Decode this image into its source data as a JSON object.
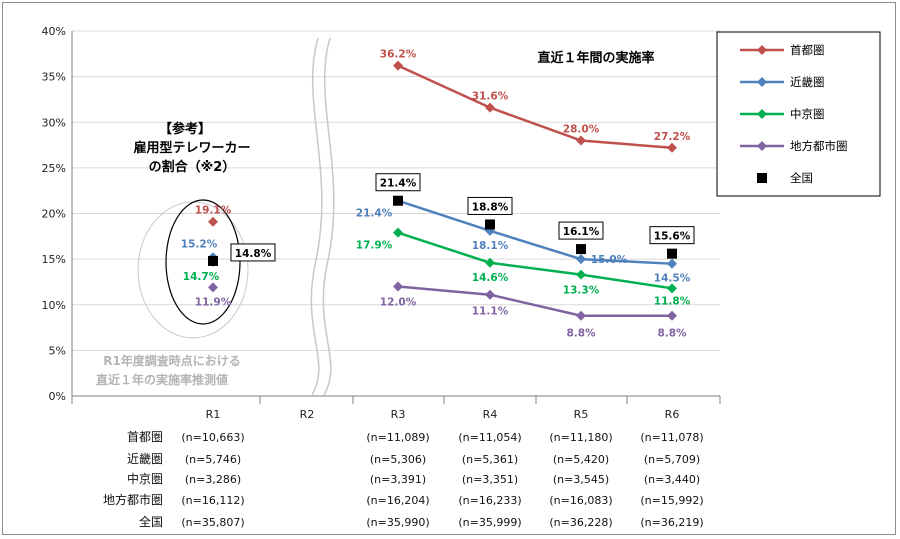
{
  "chart_data": {
    "type": "line",
    "title": "直近１年間の実施率",
    "ylim": [
      0,
      40
    ],
    "yticks": [
      "0%",
      "5%",
      "10%",
      "15%",
      "20%",
      "25%",
      "30%",
      "35%",
      "40%"
    ],
    "categories": [
      "R1",
      "R2",
      "R3",
      "R4",
      "R5",
      "R6"
    ],
    "series": [
      {
        "name": "首都圏",
        "color": "#c0504d",
        "marker": "diamond",
        "values": [
          19.1,
          null,
          36.2,
          31.6,
          28.0,
          27.2
        ],
        "labels": [
          "19.1%",
          "",
          "36.2%",
          "31.6%",
          "28.0%",
          "27.2%"
        ]
      },
      {
        "name": "近畿圏",
        "color": "#4f81bd",
        "marker": "diamond",
        "values": [
          15.2,
          null,
          21.4,
          18.1,
          15.0,
          14.5
        ],
        "labels": [
          "15.2%",
          "",
          "21.4%",
          "18.1%",
          "15.0%",
          "14.5%"
        ]
      },
      {
        "name": "中京圏",
        "color": "#00b050",
        "marker": "diamond",
        "values": [
          14.7,
          null,
          17.9,
          14.6,
          13.3,
          11.8
        ],
        "labels": [
          "14.7%",
          "",
          "17.9%",
          "14.6%",
          "13.3%",
          "11.8%"
        ]
      },
      {
        "name": "地方都市圏",
        "color": "#8064a2",
        "marker": "diamond",
        "values": [
          11.9,
          null,
          12.0,
          11.1,
          8.8,
          8.8
        ],
        "labels": [
          "11.9%",
          "",
          "12.0%",
          "11.1%",
          "8.8%",
          "8.8%"
        ]
      },
      {
        "name": "全国",
        "color": "#000000",
        "marker": "square",
        "values": [
          14.8,
          null,
          21.4,
          18.8,
          16.1,
          15.6
        ],
        "labels": [
          "14.8%",
          "",
          "21.4%",
          "18.8%",
          "16.1%",
          "15.6%"
        ]
      }
    ],
    "reference_note": {
      "line1": "【参考】",
      "line2": "雇用型テレワーカー",
      "line3": "の割合（※2）"
    },
    "r1_note": {
      "line1": "R1年度調査時点における",
      "line2": "直近１年の実施率推測値"
    },
    "sample_table": {
      "rows": [
        {
          "name": "首都圏",
          "n": [
            "(n=10,663)",
            "",
            "(n=11,089)",
            "(n=11,054)",
            "(n=11,180)",
            "(n=11,078)"
          ]
        },
        {
          "name": "近畿圏",
          "n": [
            "(n=5,746)",
            "",
            "(n=5,306)",
            "(n=5,361)",
            "(n=5,420)",
            "(n=5,709)"
          ]
        },
        {
          "name": "中京圏",
          "n": [
            "(n=3,286)",
            "",
            "(n=3,391)",
            "(n=3,351)",
            "(n=3,545)",
            "(n=3,440)"
          ]
        },
        {
          "name": "地方都市圏",
          "n": [
            "(n=16,112)",
            "",
            "(n=16,204)",
            "(n=16,233)",
            "(n=16,083)",
            "(n=15,992)"
          ]
        },
        {
          "name": "全国",
          "n": [
            "(n=35,807)",
            "",
            "(n=35,990)",
            "(n=35,999)",
            "(n=36,228)",
            "(n=36,219)"
          ]
        }
      ]
    }
  }
}
